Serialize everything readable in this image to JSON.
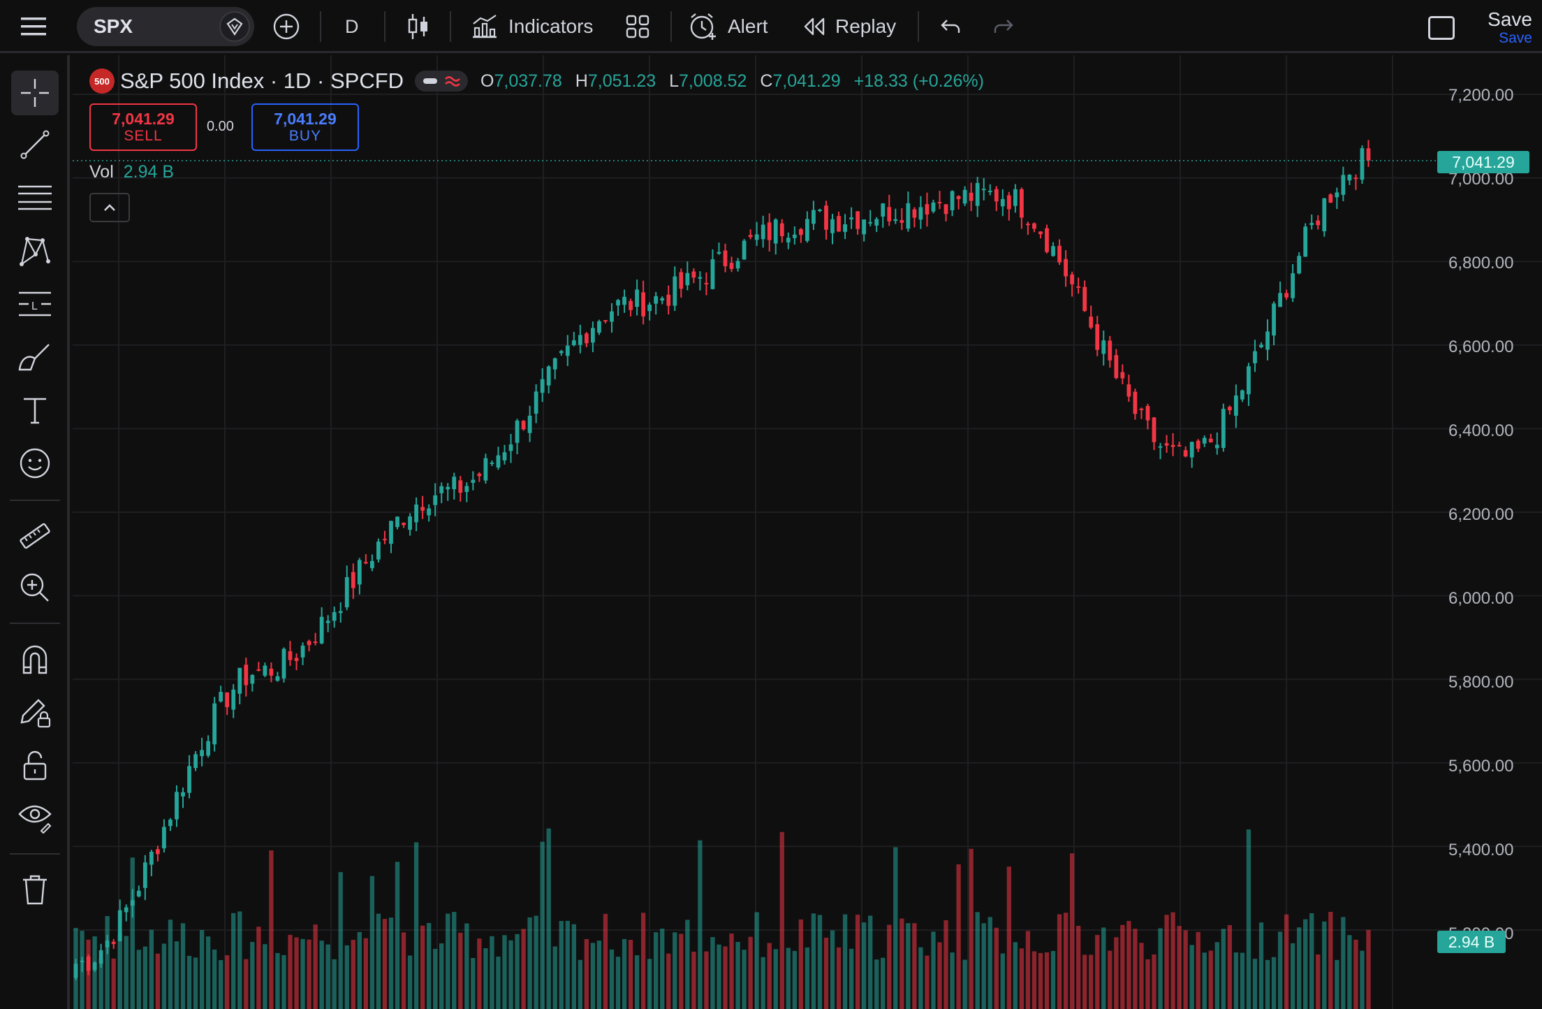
{
  "toolbar": {
    "symbol": "SPX",
    "interval": "D",
    "indicators_label": "Indicators",
    "alert_label": "Alert",
    "replay_label": "Replay",
    "save_label": "Save",
    "save_sublabel": "Save"
  },
  "left_toolbar": {
    "tools": [
      "crosshair-icon",
      "trend-line-icon",
      "fib-retracement-icon",
      "pattern-icon",
      "projection-icon",
      "brush-icon",
      "text-icon",
      "emoji-icon",
      "ruler-icon",
      "zoom-in-icon",
      "magnet-icon",
      "lock-drawings-icon",
      "unlock-icon",
      "eye-icon",
      "trash-icon"
    ]
  },
  "legend": {
    "logo_text": "500",
    "title": "S&P 500 Index · 1D · SPCFD",
    "open_key": "O",
    "open": "7,037.78",
    "high_key": "H",
    "high": "7,051.23",
    "low_key": "L",
    "low": "7,008.52",
    "close_key": "C",
    "close": "7,041.29",
    "change": "+18.33 (+0.26%)"
  },
  "trade": {
    "sell_price": "7,041.29",
    "sell_label": "SELL",
    "spread": "0.00",
    "buy_price": "7,041.29",
    "buy_label": "BUY"
  },
  "volume_legend": {
    "label": "Vol",
    "value": "2.94 B"
  },
  "price_axis": {
    "labels": [
      "7,200.00",
      "7,000.00",
      "6,800.00",
      "6,600.00",
      "6,400.00",
      "6,200.00",
      "6,000.00",
      "5,800.00",
      "5,600.00",
      "5,400.00",
      "5,200.00"
    ],
    "last_price": "7,041.29",
    "last_volume": "2.94 B"
  },
  "colors": {
    "up": "#26a69a",
    "down": "#f23645",
    "background": "#0f0f0f",
    "accent": "#2962ff"
  },
  "chart_data": {
    "type": "candlestick",
    "price_range": [
      5200,
      7200
    ],
    "last_close": 7041.29,
    "key_points": [
      {
        "segment": "start",
        "close": 5120
      },
      {
        "segment": "rally",
        "close": 5820
      },
      {
        "segment": "rally",
        "close": 6250
      },
      {
        "segment": "rally",
        "close": 6700
      },
      {
        "segment": "peak",
        "close": 6900
      },
      {
        "segment": "plateau",
        "close": 6960
      },
      {
        "segment": "pullback",
        "close": 6330
      },
      {
        "segment": "recovery",
        "close": 7041.29
      }
    ]
  }
}
